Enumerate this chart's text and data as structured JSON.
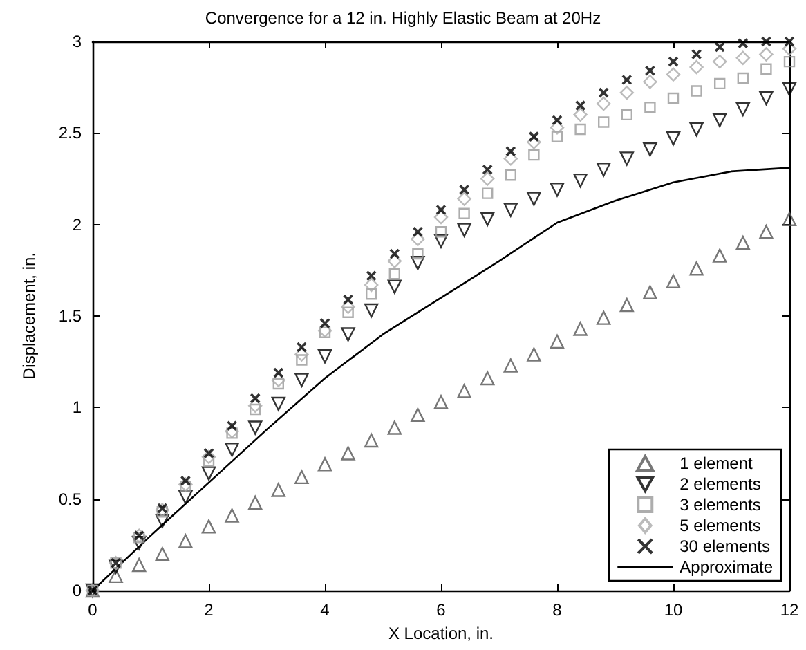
{
  "chart_data": {
    "type": "scatter",
    "title": "Convergence for a 12 in. Highly Elastic Beam at 20Hz",
    "xlabel": "X Location, in.",
    "ylabel": "Displacement, in.",
    "x": [
      0,
      0.4,
      0.8,
      1.2,
      1.6,
      2,
      2.4,
      2.8,
      3.2,
      3.6,
      4,
      4.4,
      4.8,
      5.2,
      5.6,
      6,
      6.4,
      6.8,
      7.2,
      7.6,
      8,
      8.4,
      8.8,
      9.2,
      9.6,
      10,
      10.4,
      10.8,
      11.2,
      11.6,
      12
    ],
    "series": [
      {
        "name": "1 element",
        "color": "#555555",
        "marker": "triangle",
        "values": [
          0,
          0.08,
          0.14,
          0.2,
          0.27,
          0.35,
          0.41,
          0.48,
          0.55,
          0.62,
          0.69,
          0.75,
          0.82,
          0.89,
          0.96,
          1.03,
          1.09,
          1.16,
          1.23,
          1.29,
          1.36,
          1.43,
          1.49,
          1.56,
          1.63,
          1.69,
          1.76,
          1.83,
          1.9,
          1.96,
          2.03
        ]
      },
      {
        "name": "2 elements",
        "color": "#000000",
        "marker": "triangle-down",
        "values": [
          0,
          0.13,
          0.26,
          0.38,
          0.51,
          0.64,
          0.77,
          0.89,
          1.02,
          1.15,
          1.28,
          1.4,
          1.53,
          1.66,
          1.79,
          1.91,
          1.97,
          2.03,
          2.08,
          2.14,
          2.19,
          2.24,
          2.3,
          2.36,
          2.41,
          2.47,
          2.52,
          2.57,
          2.63,
          2.69,
          2.74
        ]
      },
      {
        "name": "3 elements",
        "color": "#999999",
        "marker": "square",
        "values": [
          0,
          0.15,
          0.29,
          0.43,
          0.57,
          0.71,
          0.86,
          0.99,
          1.13,
          1.26,
          1.41,
          1.52,
          1.62,
          1.73,
          1.84,
          1.96,
          2.06,
          2.17,
          2.27,
          2.38,
          2.48,
          2.52,
          2.56,
          2.6,
          2.64,
          2.69,
          2.73,
          2.77,
          2.8,
          2.85,
          2.89
        ]
      },
      {
        "name": "5 elements",
        "color": "#aaaaaa",
        "marker": "diamond",
        "values": [
          0,
          0.15,
          0.3,
          0.44,
          0.58,
          0.73,
          0.87,
          1.01,
          1.15,
          1.29,
          1.42,
          1.55,
          1.67,
          1.8,
          1.92,
          2.04,
          2.14,
          2.25,
          2.36,
          2.45,
          2.53,
          2.6,
          2.66,
          2.72,
          2.78,
          2.82,
          2.86,
          2.89,
          2.91,
          2.93,
          2.96
        ]
      },
      {
        "name": "30 elements",
        "color": "#000000",
        "marker": "cross",
        "values": [
          0,
          0.15,
          0.3,
          0.45,
          0.6,
          0.75,
          0.9,
          1.05,
          1.19,
          1.33,
          1.46,
          1.59,
          1.72,
          1.84,
          1.96,
          2.08,
          2.19,
          2.3,
          2.4,
          2.48,
          2.57,
          2.65,
          2.72,
          2.79,
          2.84,
          2.89,
          2.93,
          2.97,
          2.99,
          3,
          3
        ]
      },
      {
        "name": "Approximate",
        "type": "line",
        "color": "#000000",
        "marker": "none",
        "x": [
          0,
          1,
          2,
          3,
          4,
          5,
          6,
          7,
          8,
          9,
          10,
          11,
          12
        ],
        "values": [
          0,
          0.3,
          0.59,
          0.88,
          1.16,
          1.4,
          1.6,
          1.8,
          2.01,
          2.13,
          2.23,
          2.29,
          2.31
        ]
      }
    ],
    "xlim": [
      0,
      12
    ],
    "xticks": [
      0,
      2,
      4,
      6,
      8,
      10,
      12
    ],
    "ylim": [
      0,
      3
    ],
    "yticks": [
      0,
      0.5,
      1,
      1.5,
      2,
      2.5,
      3
    ],
    "grid": false,
    "legend": "bottom right"
  }
}
